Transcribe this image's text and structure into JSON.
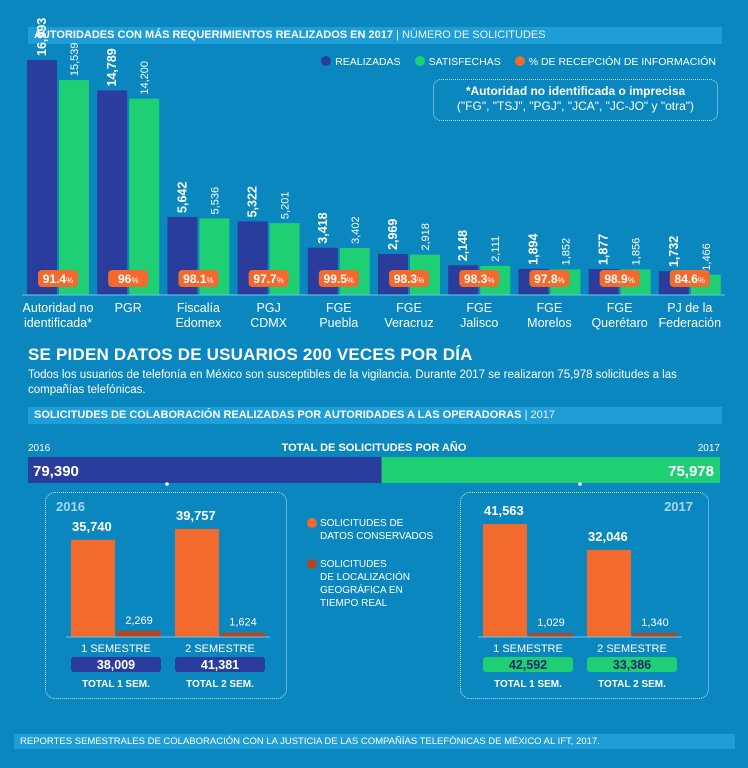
{
  "header1": {
    "title": "AUTORIDADES CON MÁS REQUERIMIENTOS REALIZADOS EN 2017",
    "subtitle": "| NÚMERO DE SOLICITUDES"
  },
  "legend": {
    "realizadas": "REALIZADAS",
    "satisfechas": "SATISFECHAS",
    "recepcion": "% DE RECEPCIÓN DE INFORMACIÓN"
  },
  "note": {
    "line1": "*Autoridad no identificada o imprecisa",
    "line2": "(\"FG\", \"TSJ\", \"PGJ\", \"JCA\", \"JC-JO\" y \"otra\")"
  },
  "colors": {
    "realizadas": "#2b3d9c",
    "satisfechas": "#1fcf74",
    "orange": "#f26a2e",
    "dark_orange": "#b4471f",
    "background": "#0b87bf"
  },
  "chart_data": [
    {
      "type": "bar",
      "title": "AUTORIDADES CON MÁS REQUERIMIENTOS REALIZADOS EN 2017",
      "subtitle": "NÚMERO DE SOLICITUDES",
      "categories": [
        "Autoridad no identificada*",
        "PGR",
        "Fiscalía Edomex",
        "PGJ CDMX",
        "FGE Puebla",
        "FGE Veracruz",
        "FGE Jalisco",
        "FGE Morelos",
        "FGE Querétaro",
        "PJ de la Federación"
      ],
      "category_lines": [
        [
          "Autoridad no",
          "identificada*"
        ],
        [
          "PGR"
        ],
        [
          "Fiscalía",
          "Edomex"
        ],
        [
          "PGJ",
          "CDMX"
        ],
        [
          "FGE",
          "Puebla"
        ],
        [
          "FGE",
          "Veracruz"
        ],
        [
          "FGE",
          "Jalisco"
        ],
        [
          "FGE",
          "Morelos"
        ],
        [
          "FGE",
          "Querétaro"
        ],
        [
          "PJ de la",
          "Federación"
        ]
      ],
      "series": [
        {
          "name": "REALIZADAS",
          "values": [
            16993,
            14789,
            5642,
            5322,
            3418,
            2969,
            2148,
            1894,
            1877,
            1732
          ],
          "labels": [
            "16,993",
            "14,789",
            "5,642",
            "5,322",
            "3,418",
            "2,969",
            "2,148",
            "1,894",
            "1,877",
            "1,732"
          ]
        },
        {
          "name": "SATISFECHAS",
          "values": [
            15539,
            14200,
            5536,
            5201,
            3402,
            2918,
            2111,
            1852,
            1856,
            1466
          ],
          "labels": [
            "15,539",
            "14,200",
            "5,536",
            "5,201",
            "3,402",
            "2,918",
            "2,111",
            "1,852",
            "1,856",
            "1,466"
          ]
        },
        {
          "name": "% DE RECEPCIÓN DE INFORMACIÓN",
          "values": [
            91.4,
            96,
            98.1,
            97.7,
            99.5,
            98.3,
            98.3,
            97.8,
            98.9,
            84.6
          ],
          "labels": [
            "91.4",
            "96",
            "98.1",
            "97.7",
            "99.5",
            "98.3",
            "98.3",
            "97.8",
            "98.9",
            "84.6"
          ]
        }
      ]
    },
    {
      "type": "bar",
      "title": "TOTAL DE SOLICITUDES POR AÑO",
      "categories": [
        "2016",
        "2017"
      ],
      "values": [
        79390,
        75978
      ],
      "labels": [
        "79,390",
        "75,978"
      ]
    },
    {
      "type": "bar",
      "year": "2016",
      "categories": [
        "1 SEMESTRE",
        "2 SEMESTRE"
      ],
      "series": [
        {
          "name": "SOLICITUDES DE DATOS CONSERVADOS",
          "values": [
            35740,
            39757
          ],
          "labels": [
            "35,740",
            "39,757"
          ]
        },
        {
          "name": "SOLICITUDES DE LOCALIZACIÓN GEOGRÁFICA EN TIEMPO REAL",
          "values": [
            2269,
            1624
          ],
          "labels": [
            "2,269",
            "1,624"
          ]
        }
      ],
      "totals": [
        "38,009",
        "41,381"
      ],
      "total_labels": [
        "TOTAL 1 SEM.",
        "TOTAL 2 SEM."
      ]
    },
    {
      "type": "bar",
      "year": "2017",
      "categories": [
        "1 SEMESTRE",
        "2 SEMESTRE"
      ],
      "series": [
        {
          "name": "SOLICITUDES DE DATOS CONSERVADOS",
          "values": [
            41563,
            32046
          ],
          "labels": [
            "41,563",
            "32,046"
          ]
        },
        {
          "name": "SOLICITUDES DE LOCALIZACIÓN GEOGRÁFICA EN TIEMPO REAL",
          "values": [
            1029,
            1340
          ],
          "labels": [
            "1,029",
            "1,340"
          ]
        }
      ],
      "totals": [
        "42,592",
        "33,386"
      ],
      "total_labels": [
        "TOTAL 1 SEM.",
        "TOTAL 2 SEM."
      ]
    }
  ],
  "headline": "SE PIDEN DATOS DE USUARIOS 200 VECES POR DÍA",
  "paragraph": "Todos los usuarios de telefonía en México son susceptibles de la vigilancia. Durante 2017 se realizaron 75,978 solicitudes a las compañías telefónicas.",
  "header2": {
    "title": "SOLICITUDES DE COLABORACIÓN REALIZADAS POR AUTORIDADES A LAS OPERADORAS",
    "subtitle": "| 2017"
  },
  "totals_header": {
    "left_year": "2016",
    "title": "TOTAL DE SOLICITUDES POR AÑO",
    "right_year": "2017"
  },
  "mid_legend": {
    "conservados": [
      "SOLICITUDES DE",
      "DATOS CONSERVADOS"
    ],
    "localizacion": [
      "SOLICITUDES",
      "DE LOCALIZACIÓN",
      "GEOGRÁFICA EN",
      "TIEMPO REAL"
    ]
  },
  "footer": "REPORTES SEMESTRALES DE COLABORACIÓN CON LA JUSTICIA DE LAS COMPAÑÍAS TELEFÓNICAS DE MÉXICO AL IFT, 2017."
}
